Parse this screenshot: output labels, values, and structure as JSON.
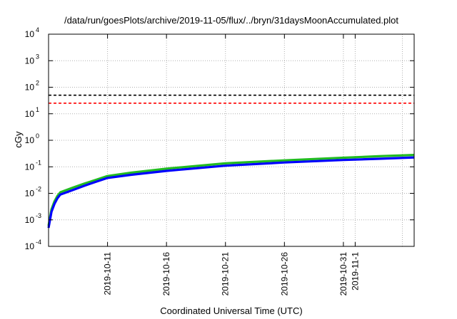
{
  "chart_data": {
    "type": "line",
    "title": "/data/run/goesPlots/archive/2019-11-05/flux/../bryn/31daysMoonAccumulated.plot",
    "xlabel": "Coordinated Universal Time (UTC)",
    "ylabel": "cGy",
    "x_scale": "time",
    "x_range": [
      "2019-10-06",
      "2019-11-06"
    ],
    "x_ticks": [
      "2019-10-11",
      "2019-10-16",
      "2019-10-21",
      "2019-10-26",
      "2019-10-31",
      "2019-11-1"
    ],
    "y_scale": "log",
    "ylim": [
      0.0001,
      10000
    ],
    "y_ticks": [
      {
        "value": 0.0001,
        "base": "10",
        "exp": "-4"
      },
      {
        "value": 0.001,
        "base": "10",
        "exp": "-3"
      },
      {
        "value": 0.01,
        "base": "10",
        "exp": "-2"
      },
      {
        "value": 0.1,
        "base": "10",
        "exp": "-1"
      },
      {
        "value": 1,
        "base": "10",
        "exp": "0"
      },
      {
        "value": 10,
        "base": "10",
        "exp": "1"
      },
      {
        "value": 100,
        "base": "10",
        "exp": "2"
      },
      {
        "value": 1000,
        "base": "10",
        "exp": "3"
      },
      {
        "value": 10000,
        "base": "10",
        "exp": "4"
      }
    ],
    "grid": true,
    "reference_lines": [
      {
        "value": 50,
        "color": "#000000",
        "style": "dashed"
      },
      {
        "value": 25,
        "color": "#ff0000",
        "style": "dashed"
      }
    ],
    "series": [
      {
        "color": "#22bb22",
        "x": [
          "2019-10-06",
          "2019-10-06 06:00",
          "2019-10-06 12:00",
          "2019-10-06 18:00",
          "2019-10-07",
          "2019-10-08",
          "2019-10-09",
          "2019-10-10",
          "2019-10-11",
          "2019-10-13",
          "2019-10-16",
          "2019-10-21",
          "2019-10-26",
          "2019-10-31",
          "2019-11-03",
          "2019-11-06"
        ],
        "values": [
          0.0006,
          0.0025,
          0.005,
          0.008,
          0.011,
          0.016,
          0.023,
          0.032,
          0.045,
          0.06,
          0.085,
          0.135,
          0.175,
          0.22,
          0.25,
          0.28
        ]
      },
      {
        "color": "#0000ff",
        "x": [
          "2019-10-06",
          "2019-10-06 06:00",
          "2019-10-06 12:00",
          "2019-10-06 18:00",
          "2019-10-07",
          "2019-10-08",
          "2019-10-09",
          "2019-10-10",
          "2019-10-11",
          "2019-10-13",
          "2019-10-16",
          "2019-10-21",
          "2019-10-26",
          "2019-10-31",
          "2019-11-03",
          "2019-11-06"
        ],
        "values": [
          0.0005,
          0.002,
          0.004,
          0.0065,
          0.009,
          0.013,
          0.019,
          0.027,
          0.038,
          0.05,
          0.07,
          0.11,
          0.145,
          0.18,
          0.2,
          0.225
        ]
      }
    ]
  }
}
